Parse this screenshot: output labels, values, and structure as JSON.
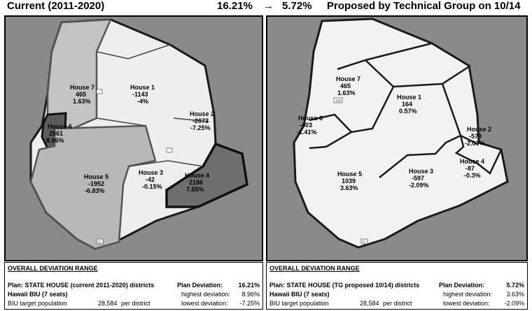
{
  "header": {
    "left_title": "Current (2011-2020)",
    "from_pct": "16.21%",
    "arrow": "→",
    "to_pct": "5.72%",
    "right_title": "Proposed by Technical Group on 10/14"
  },
  "colors": {
    "background": "#8a8a8a",
    "island": "#eeeeee",
    "shaded": "#bdbdbd",
    "dark_district": "#6e6e6e",
    "outline": "#1a1a1a"
  },
  "left_map": {
    "districts": [
      {
        "name": "House 7",
        "value": "465",
        "pct": "1.63%"
      },
      {
        "name": "House 1",
        "value": "-1143",
        "pct": "-4%"
      },
      {
        "name": "House 2",
        "value": "-2073",
        "pct": "-7.25%"
      },
      {
        "name": "House 6",
        "value": "2561",
        "pct": "8.96%"
      },
      {
        "name": "House 5",
        "value": "-1952",
        "pct": "-6.83%"
      },
      {
        "name": "House 3",
        "value": "-42",
        "pct": "-0.15%"
      },
      {
        "name": "House 4",
        "value": "2186",
        "pct": "7.65%"
      }
    ],
    "route_11": "11"
  },
  "right_map": {
    "districts": [
      {
        "name": "House 7",
        "value": "465",
        "pct": "1.63%"
      },
      {
        "name": "House 1",
        "value": "164",
        "pct": "0.57%"
      },
      {
        "name": "House 6",
        "value": "-403",
        "pct": "-1.41%"
      },
      {
        "name": "House 2",
        "value": "-579",
        "pct": "-2.03%"
      },
      {
        "name": "House 4",
        "value": "-87",
        "pct": "-0.3%"
      },
      {
        "name": "House 5",
        "value": "1039",
        "pct": "3.63%"
      },
      {
        "name": "House 3",
        "value": "-597",
        "pct": "-2.09%"
      }
    ],
    "route_11": "11",
    "route_190": "190"
  },
  "left_info": {
    "heading": "OVERALL DEVIATION RANGE",
    "plan": "Plan:  STATE HOUSE (current 2011-2020) districts",
    "plan_dev_label": "Plan Deviation:",
    "plan_dev_value": "16.21%",
    "biu": "Hawaii BIU (7 seats)",
    "highest_label": "highest deviation:",
    "highest_value": "8.96%",
    "target_label": "BIU target population",
    "target_value": "28,584",
    "per_district": "per district",
    "lowest_label": "lowest deviation:",
    "lowest_value": "-7.25%"
  },
  "right_info": {
    "heading": "OVERALL DEVIATION RANGE",
    "plan": "Plan:  STATE HOUSE (TG proposed 10/14) districts",
    "plan_dev_label": "Plan Deviation:",
    "plan_dev_value": "5.72%",
    "biu": "Hawaii BIU (7 seats)",
    "highest_label": "highest deviation:",
    "highest_value": "3.63%",
    "target_label": "BIU target population",
    "target_value": "28,584",
    "per_district": "per district",
    "lowest_label": "lowest deviation:",
    "lowest_value": "-2.09%"
  }
}
